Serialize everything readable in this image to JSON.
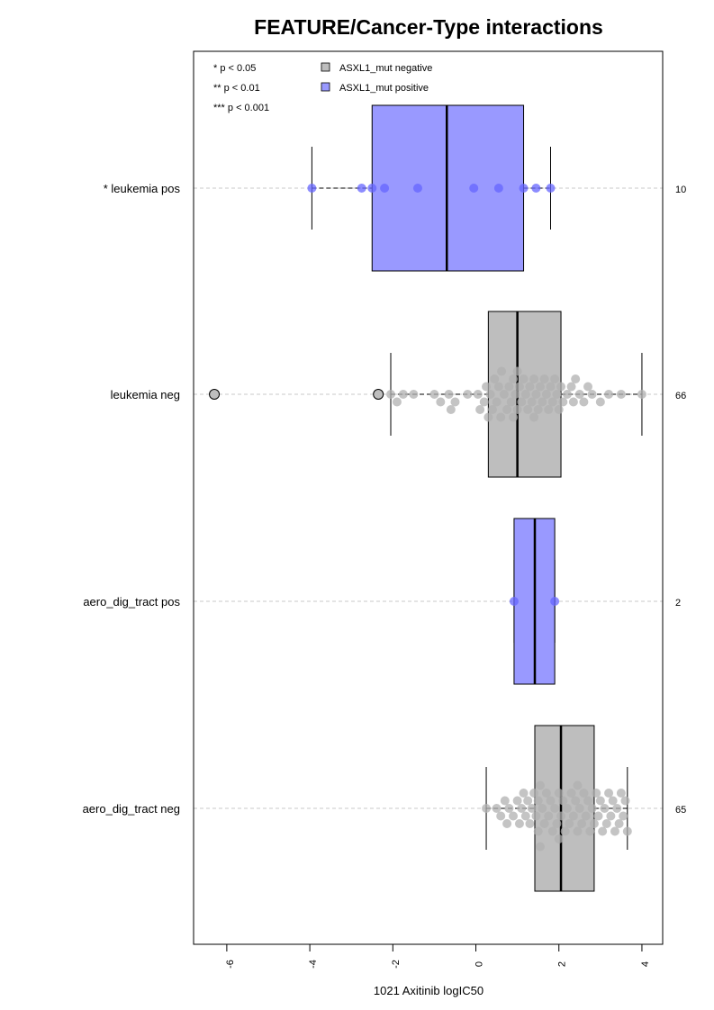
{
  "chart_data": {
    "type": "boxplot",
    "orientation": "horizontal",
    "title": "FEATURE/Cancer-Type interactions",
    "xlabel": "1021 Axitinib logIC50",
    "xlim": [
      -6.8,
      4.5
    ],
    "xticks": [
      -6,
      -4,
      -2,
      0,
      2,
      4
    ],
    "xtick_labels": [
      "-6",
      "-4",
      "-2",
      "0",
      "2",
      "4"
    ],
    "significance_legend": [
      "* p < 0.05",
      "** p < 0.01",
      "*** p < 0.001"
    ],
    "legend": [
      {
        "label": "ASXL1_mut negative",
        "color": "#bebebe"
      },
      {
        "label": "ASXL1_mut positive",
        "color": "#9999ff"
      }
    ],
    "groups": [
      {
        "label": "* leukemia pos",
        "n": "10",
        "status": "positive",
        "box": {
          "whisker_low": -3.95,
          "q1": -2.5,
          "median": -0.7,
          "q3": 1.15,
          "whisker_high": 1.8
        },
        "points": [
          -3.95,
          -2.75,
          -2.5,
          -2.2,
          -1.4,
          -0.05,
          0.55,
          1.15,
          1.45,
          1.8
        ],
        "outliers": []
      },
      {
        "label": "leukemia neg",
        "n": "66",
        "status": "negative",
        "box": {
          "whisker_low": -2.05,
          "q1": 0.3,
          "median": 1.0,
          "q3": 2.05,
          "whisker_high": 4.0
        },
        "points": [
          -2.05,
          -1.9,
          -1.75,
          -1.5,
          -1.0,
          -0.85,
          -0.6,
          -0.5,
          -0.65,
          -0.2,
          0.05,
          0.1,
          0.2,
          0.25,
          0.3,
          0.35,
          0.4,
          0.45,
          0.5,
          0.55,
          0.6,
          0.62,
          0.68,
          0.75,
          0.8,
          0.85,
          0.9,
          0.95,
          1.0,
          1.0,
          1.05,
          1.1,
          1.15,
          1.2,
          1.25,
          1.3,
          1.35,
          1.4,
          1.45,
          1.5,
          1.55,
          1.6,
          1.65,
          1.7,
          1.75,
          1.8,
          1.85,
          1.9,
          1.95,
          2.0,
          2.05,
          2.1,
          2.2,
          2.3,
          2.35,
          2.4,
          2.5,
          2.6,
          2.7,
          2.8,
          3.0,
          3.2,
          3.5,
          4.0,
          0.9,
          1.4
        ],
        "outliers": [
          -6.3,
          -2.35
        ]
      },
      {
        "label": "aero_dig_tract pos",
        "n": "2",
        "status": "positive",
        "box": {
          "whisker_low": 0.92,
          "q1": 0.92,
          "median": 1.42,
          "q3": 1.9,
          "whisker_high": 1.9
        },
        "points": [
          0.92,
          1.9
        ],
        "outliers": []
      },
      {
        "label": "aero_dig_tract neg",
        "n": "65",
        "status": "negative",
        "box": {
          "whisker_low": 0.25,
          "q1": 1.42,
          "median": 2.05,
          "q3": 2.85,
          "whisker_high": 3.65
        },
        "points": [
          0.25,
          0.5,
          0.6,
          0.7,
          0.75,
          0.8,
          0.9,
          1.0,
          1.05,
          1.1,
          1.15,
          1.2,
          1.25,
          1.3,
          1.35,
          1.4,
          1.45,
          1.5,
          1.5,
          1.55,
          1.6,
          1.65,
          1.7,
          1.75,
          1.8,
          1.85,
          1.9,
          1.95,
          2.0,
          2.05,
          2.1,
          2.15,
          2.2,
          2.25,
          2.3,
          2.35,
          2.4,
          2.45,
          2.5,
          2.55,
          2.6,
          2.65,
          2.7,
          2.75,
          2.8,
          2.85,
          2.9,
          2.95,
          3.0,
          3.05,
          3.1,
          3.15,
          3.2,
          3.25,
          3.3,
          3.35,
          3.4,
          3.45,
          3.5,
          3.55,
          3.6,
          3.65,
          1.55,
          2.0,
          2.45
        ],
        "outliers": []
      }
    ]
  }
}
